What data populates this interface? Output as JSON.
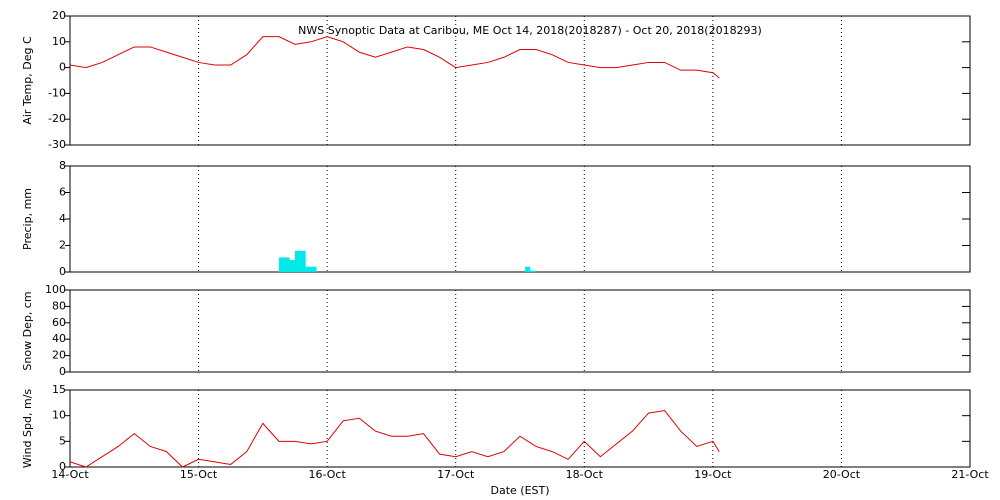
{
  "chart_data": [
    {
      "type": "line",
      "title": "NWS Synoptic Data at Caribou, ME   Oct 14, 2018(2018287) - Oct 20, 2018(2018293)",
      "ylabel": "Air Temp, Deg C",
      "x": [
        0,
        0.125,
        0.25,
        0.375,
        0.5,
        0.625,
        0.75,
        0.875,
        1,
        1.125,
        1.25,
        1.375,
        1.5,
        1.625,
        1.75,
        1.875,
        2,
        2.125,
        2.25,
        2.375,
        2.5,
        2.625,
        2.75,
        2.875,
        3,
        3.125,
        3.25,
        3.375,
        3.5,
        3.625,
        3.75,
        3.875,
        4,
        4.125,
        4.25,
        4.375,
        4.5,
        4.625,
        4.75,
        4.875,
        5,
        5.05
      ],
      "series": [
        {
          "color": "#e00000",
          "values": [
            1,
            0,
            2,
            5,
            8,
            8,
            6,
            4,
            2,
            1,
            1,
            5,
            12,
            12,
            9,
            10,
            12,
            10,
            6,
            4,
            6,
            8,
            7,
            4,
            0,
            1,
            2,
            4,
            7,
            7,
            5,
            2,
            1,
            0,
            0,
            1,
            2,
            2,
            -1,
            -1,
            -2,
            -4
          ]
        }
      ],
      "xlim": [
        0,
        7
      ],
      "xticks": [
        {
          "value": 0,
          "label": "14-Oct"
        },
        {
          "value": 1,
          "label": "15-Oct"
        },
        {
          "value": 2,
          "label": "16-Oct"
        },
        {
          "value": 3,
          "label": "17-Oct"
        },
        {
          "value": 4,
          "label": "18-Oct"
        },
        {
          "value": 5,
          "label": "19-Oct"
        },
        {
          "value": 6,
          "label": "20-Oct"
        },
        {
          "value": 7,
          "label": "21-Oct"
        }
      ],
      "ylim": [
        -30,
        20
      ],
      "yticks": [
        -30,
        -20,
        -10,
        0,
        10,
        20
      ],
      "grid": true
    },
    {
      "type": "histogram",
      "ylabel": "Precip, mm",
      "color": "#00e8e8",
      "bins": [
        1.625,
        1.708,
        1.75,
        1.833,
        1.917,
        3.54,
        3.58,
        3.625
      ],
      "values": [
        1.1,
        0.9,
        1.6,
        0.4,
        0,
        0.4,
        0.1
      ],
      "xlim": [
        0,
        7
      ],
      "xticks": [
        {
          "value": 0,
          "label": "14-Oct"
        },
        {
          "value": 1,
          "label": "15-Oct"
        },
        {
          "value": 2,
          "label": "16-Oct"
        },
        {
          "value": 3,
          "label": "17-Oct"
        },
        {
          "value": 4,
          "label": "18-Oct"
        },
        {
          "value": 5,
          "label": "19-Oct"
        },
        {
          "value": 6,
          "label": "20-Oct"
        },
        {
          "value": 7,
          "label": "21-Oct"
        }
      ],
      "ylim": [
        0,
        8
      ],
      "yticks": [
        0,
        2,
        4,
        6,
        8
      ],
      "grid": true
    },
    {
      "type": "line",
      "ylabel": "Snow Dep, cm",
      "x": [],
      "series": [],
      "xlim": [
        0,
        7
      ],
      "xticks": [
        {
          "value": 0,
          "label": "14-Oct"
        },
        {
          "value": 1,
          "label": "15-Oct"
        },
        {
          "value": 2,
          "label": "16-Oct"
        },
        {
          "value": 3,
          "label": "17-Oct"
        },
        {
          "value": 4,
          "label": "18-Oct"
        },
        {
          "value": 5,
          "label": "19-Oct"
        },
        {
          "value": 6,
          "label": "20-Oct"
        },
        {
          "value": 7,
          "label": "21-Oct"
        }
      ],
      "ylim": [
        0,
        100
      ],
      "yticks": [
        0,
        20,
        40,
        60,
        80,
        100
      ],
      "grid": true
    },
    {
      "type": "line",
      "ylabel": "Wind Spd, m/s",
      "xlabel": "Date (EST)",
      "x": [
        0,
        0.125,
        0.25,
        0.375,
        0.5,
        0.625,
        0.75,
        0.875,
        1,
        1.125,
        1.25,
        1.375,
        1.5,
        1.625,
        1.75,
        1.875,
        2,
        2.125,
        2.25,
        2.375,
        2.5,
        2.625,
        2.75,
        2.875,
        3,
        3.125,
        3.25,
        3.375,
        3.5,
        3.625,
        3.75,
        3.875,
        4,
        4.125,
        4.25,
        4.375,
        4.5,
        4.625,
        4.75,
        4.875,
        5,
        5.05
      ],
      "series": [
        {
          "color": "#e00000",
          "values": [
            1,
            0,
            2,
            4,
            6.5,
            4,
            3,
            0,
            1.5,
            1,
            0.5,
            3,
            8.5,
            5,
            5,
            4.5,
            5,
            9,
            9.5,
            7,
            6,
            6,
            6.5,
            2.5,
            2,
            3,
            2,
            3,
            6,
            4,
            3,
            1.5,
            5,
            2,
            4.5,
            7,
            10.5,
            11,
            7,
            4,
            5,
            3
          ]
        }
      ],
      "xlim": [
        0,
        7
      ],
      "xticks": [
        {
          "value": 0,
          "label": "14-Oct"
        },
        {
          "value": 1,
          "label": "15-Oct"
        },
        {
          "value": 2,
          "label": "16-Oct"
        },
        {
          "value": 3,
          "label": "17-Oct"
        },
        {
          "value": 4,
          "label": "18-Oct"
        },
        {
          "value": 5,
          "label": "19-Oct"
        },
        {
          "value": 6,
          "label": "20-Oct"
        },
        {
          "value": 7,
          "label": "21-Oct"
        }
      ],
      "ylim": [
        0,
        15
      ],
      "yticks": [
        0,
        5,
        10,
        15
      ],
      "grid": true
    }
  ]
}
